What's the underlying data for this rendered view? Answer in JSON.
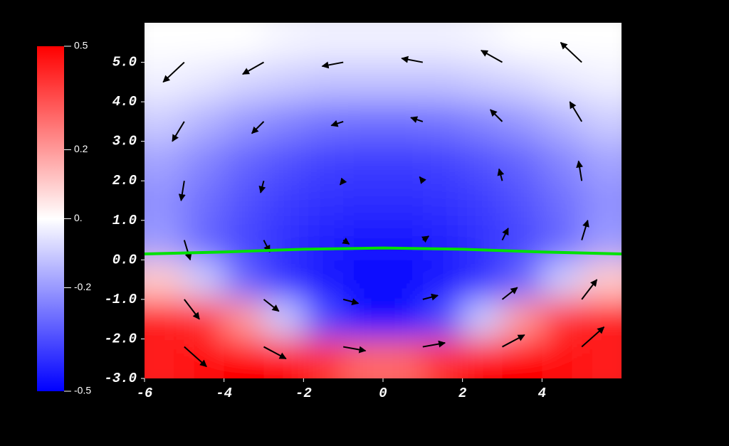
{
  "chart_data": {
    "type": "heatmap",
    "xlim": [
      -6,
      6
    ],
    "ylim": [
      -3,
      6
    ],
    "xticks": [
      -6,
      -4,
      -2,
      0,
      2,
      4
    ],
    "yticks": [
      {
        "value": -3,
        "label": "-3.0"
      },
      {
        "value": -2,
        "label": "-2.0"
      },
      {
        "value": -1,
        "label": "-1.0"
      },
      {
        "value": 0,
        "label": "0.0"
      },
      {
        "value": 1,
        "label": "1.0"
      },
      {
        "value": 2,
        "label": "2.0"
      },
      {
        "value": 3,
        "label": "3.0"
      },
      {
        "value": 4,
        "label": "4.0"
      },
      {
        "value": 5,
        "label": "5.0"
      }
    ],
    "heatmap": {
      "x": [
        -5.5,
        -4.5,
        -3.5,
        -2.5,
        -1.5,
        -0.5,
        0.5,
        1.5,
        2.5,
        3.5,
        4.5,
        5.5
      ],
      "y": [
        5.5,
        4.5,
        3.5,
        2.5,
        1.5,
        0.5,
        -0.5,
        -1.5,
        -2.5
      ],
      "z": [
        [
          0,
          0,
          0,
          -0.02,
          -0.03,
          -0.03,
          -0.03,
          -0.03,
          -0.02,
          0,
          0,
          0
        ],
        [
          -0.03,
          -0.05,
          -0.08,
          -0.1,
          -0.12,
          -0.12,
          -0.12,
          -0.12,
          -0.1,
          -0.08,
          -0.05,
          -0.03
        ],
        [
          -0.1,
          -0.15,
          -0.2,
          -0.24,
          -0.27,
          -0.28,
          -0.28,
          -0.27,
          -0.24,
          -0.2,
          -0.15,
          -0.1
        ],
        [
          -0.18,
          -0.24,
          -0.3,
          -0.34,
          -0.37,
          -0.38,
          -0.38,
          -0.37,
          -0.34,
          -0.3,
          -0.24,
          -0.18
        ],
        [
          -0.22,
          -0.28,
          -0.34,
          -0.38,
          -0.4,
          -0.41,
          -0.41,
          -0.4,
          -0.38,
          -0.34,
          -0.28,
          -0.22
        ],
        [
          -0.2,
          -0.3,
          -0.36,
          -0.4,
          -0.43,
          -0.45,
          -0.45,
          -0.43,
          -0.4,
          -0.36,
          -0.3,
          -0.2
        ],
        [
          0.1,
          -0.1,
          -0.3,
          -0.4,
          -0.45,
          -0.48,
          -0.48,
          -0.45,
          -0.4,
          -0.3,
          -0.1,
          0.1
        ],
        [
          0.45,
          0.4,
          0.2,
          -0.1,
          -0.35,
          -0.48,
          -0.48,
          -0.35,
          -0.1,
          0.2,
          0.4,
          0.45
        ],
        [
          0.45,
          0.48,
          0.5,
          0.48,
          0.4,
          0.3,
          0.3,
          0.4,
          0.48,
          0.5,
          0.48,
          0.45
        ]
      ]
    },
    "clim": [
      -0.5,
      0.5
    ],
    "colorbar_ticks": [
      {
        "value": 0.5,
        "label": "0.5"
      },
      {
        "value": 0.2,
        "label": "0.2"
      },
      {
        "value": 0,
        "label": "0."
      },
      {
        "value": -0.2,
        "label": "-0.2"
      },
      {
        "value": -0.5,
        "label": "-0.5"
      }
    ],
    "colors": [
      "#0000ff",
      "#ffffff",
      "#ff0000"
    ],
    "vectors": {
      "color": "#000000",
      "x": [
        -5,
        -3,
        -1,
        1,
        3,
        5,
        -5,
        -3,
        -1,
        1,
        3,
        5,
        -5,
        -3,
        -1,
        1,
        3,
        5,
        -5,
        -3,
        -1,
        1,
        3,
        5,
        -5,
        -3,
        -1,
        1,
        3,
        5,
        -5,
        -3,
        -1,
        1,
        3,
        5
      ],
      "y": [
        5,
        5,
        5,
        5,
        5,
        5,
        3.5,
        3.5,
        3.5,
        3.5,
        3.5,
        3.5,
        2,
        2,
        2,
        2,
        2,
        2,
        0.5,
        0.5,
        0.5,
        0.5,
        0.5,
        0.5,
        -1,
        -1,
        -1,
        -1,
        -1,
        -1,
        -2.2,
        -2.2,
        -2.2,
        -2.2,
        -2.2,
        -2.2
      ],
      "u": [
        -0.53,
        -0.53,
        -0.53,
        -0.53,
        -0.53,
        -0.53,
        -0.3,
        -0.3,
        -0.3,
        -0.3,
        -0.3,
        -0.3,
        -0.08,
        -0.08,
        -0.08,
        -0.08,
        -0.08,
        -0.08,
        0.15,
        0.15,
        0.15,
        0.15,
        0.15,
        0.15,
        0.38,
        0.38,
        0.38,
        0.38,
        0.38,
        0.38,
        0.56,
        0.56,
        0.56,
        0.56,
        0.56,
        0.56
      ],
      "v": [
        -0.5,
        -0.3,
        -0.1,
        0.1,
        0.3,
        0.5,
        -0.5,
        -0.3,
        -0.1,
        0.1,
        0.3,
        0.5,
        -0.5,
        -0.3,
        -0.1,
        0.1,
        0.3,
        0.5,
        -0.5,
        -0.3,
        -0.1,
        0.1,
        0.3,
        0.5,
        -0.5,
        -0.3,
        -0.1,
        0.1,
        0.3,
        0.5,
        -0.5,
        -0.3,
        -0.1,
        0.1,
        0.3,
        0.5
      ]
    },
    "line": {
      "color": "#00e000",
      "x": [
        -6,
        -4,
        -2,
        0,
        2,
        4,
        6
      ],
      "y": [
        0.15,
        0.2,
        0.27,
        0.3,
        0.27,
        0.2,
        0.15
      ]
    }
  }
}
